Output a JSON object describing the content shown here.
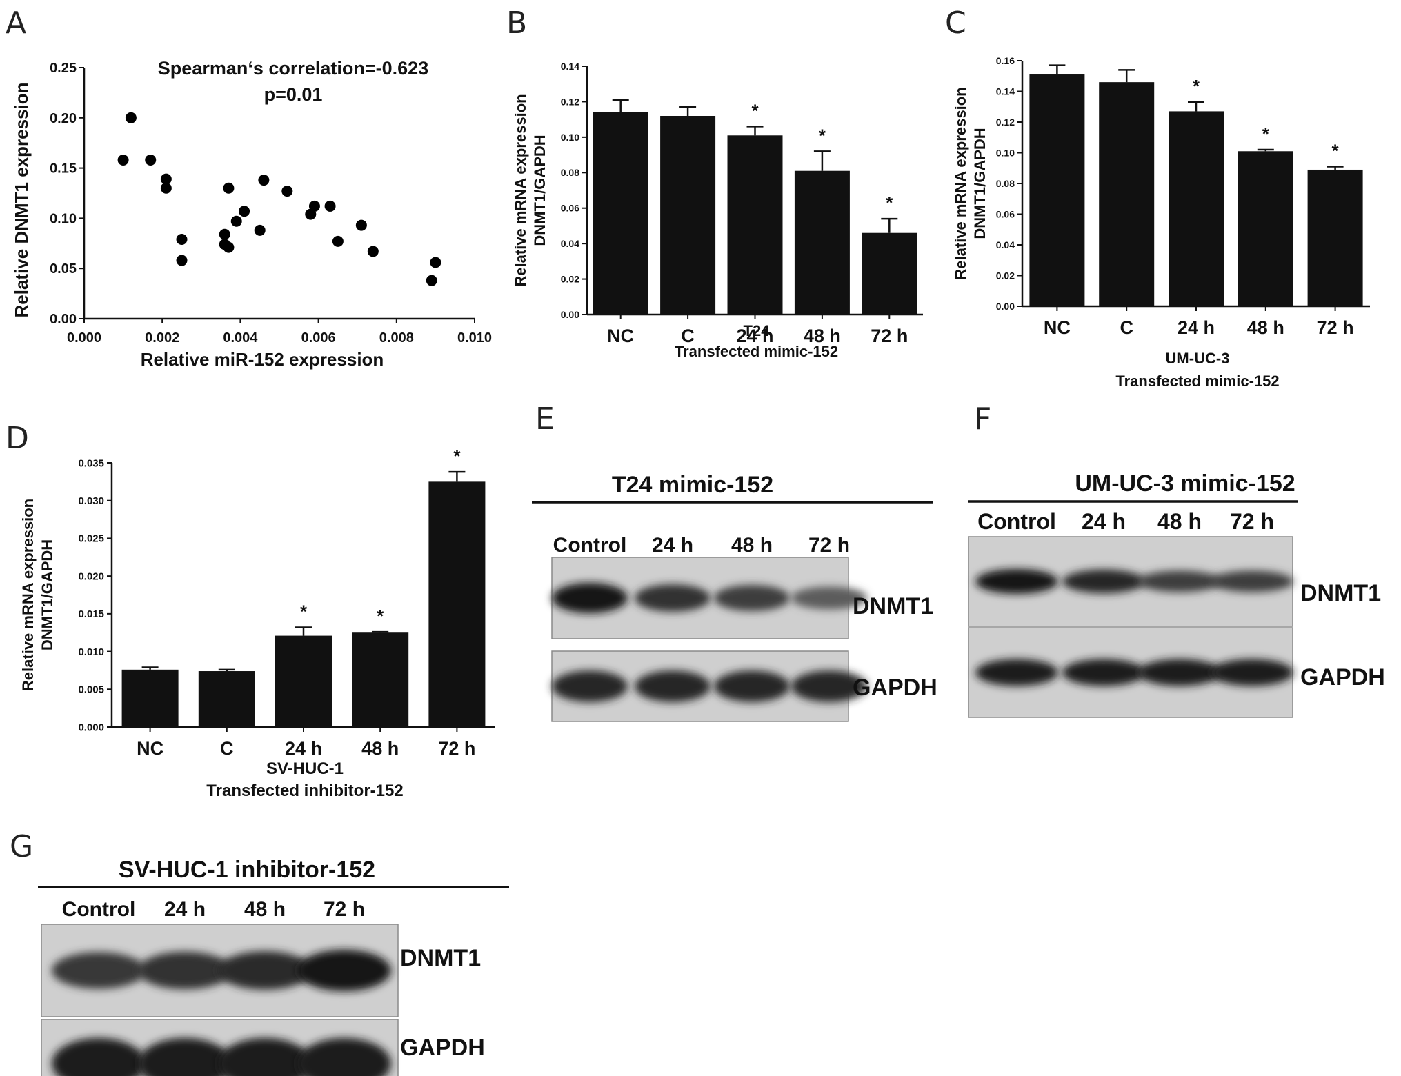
{
  "chart_data": [
    {
      "panel": "A",
      "type": "scatter",
      "title": "Spearman‘s correlation=-0.623",
      "subtitle": "p=0.01",
      "xlabel": "Relative miR-152 expression",
      "ylabel": "Relative DNMT1 expression",
      "xlim": [
        0.0,
        0.01
      ],
      "ylim": [
        0.0,
        0.25
      ],
      "xticks": [
        "0.000",
        "0.002",
        "0.004",
        "0.006",
        "0.008",
        "0.010"
      ],
      "yticks": [
        "0.00",
        "0.05",
        "0.10",
        "0.15",
        "0.20",
        "0.25"
      ],
      "points": [
        {
          "x": 0.001,
          "y": 0.158
        },
        {
          "x": 0.0012,
          "y": 0.2
        },
        {
          "x": 0.0017,
          "y": 0.158
        },
        {
          "x": 0.0021,
          "y": 0.139
        },
        {
          "x": 0.0021,
          "y": 0.13
        },
        {
          "x": 0.0025,
          "y": 0.079
        },
        {
          "x": 0.0025,
          "y": 0.058
        },
        {
          "x": 0.0036,
          "y": 0.084
        },
        {
          "x": 0.0036,
          "y": 0.074
        },
        {
          "x": 0.0037,
          "y": 0.13
        },
        {
          "x": 0.0037,
          "y": 0.071
        },
        {
          "x": 0.0039,
          "y": 0.097
        },
        {
          "x": 0.0041,
          "y": 0.107
        },
        {
          "x": 0.0045,
          "y": 0.088
        },
        {
          "x": 0.0046,
          "y": 0.138
        },
        {
          "x": 0.0052,
          "y": 0.127
        },
        {
          "x": 0.0058,
          "y": 0.104
        },
        {
          "x": 0.0059,
          "y": 0.112
        },
        {
          "x": 0.0063,
          "y": 0.112
        },
        {
          "x": 0.0065,
          "y": 0.077
        },
        {
          "x": 0.0071,
          "y": 0.093
        },
        {
          "x": 0.0074,
          "y": 0.067
        },
        {
          "x": 0.0089,
          "y": 0.038
        },
        {
          "x": 0.009,
          "y": 0.056
        }
      ]
    },
    {
      "panel": "B",
      "type": "bar",
      "ylabel_line1": "Relative mRNA expression",
      "ylabel_line2": "DNMT1/GAPDH",
      "xlabel_line1": "T24",
      "xlabel_line2": "Transfected mimic-152",
      "categories": [
        "NC",
        "C",
        "24 h",
        "48 h",
        "72 h"
      ],
      "values": [
        0.114,
        0.112,
        0.101,
        0.081,
        0.046
      ],
      "errors": [
        0.007,
        0.005,
        0.005,
        0.011,
        0.008
      ],
      "significance": [
        "",
        "",
        "*",
        "*",
        "*"
      ],
      "ylim": [
        0.0,
        0.14
      ],
      "yticks": [
        "0.00",
        "0.02",
        "0.04",
        "0.06",
        "0.08",
        "0.10",
        "0.12",
        "0.14"
      ]
    },
    {
      "panel": "C",
      "type": "bar",
      "ylabel_line1": "Relative mRNA expression",
      "ylabel_line2": "DNMT1/GAPDH",
      "xlabel_line1": "UM-UC-3",
      "xlabel_line2": "Transfected mimic-152",
      "categories": [
        "NC",
        "C",
        "24 h",
        "48 h",
        "72 h"
      ],
      "values": [
        0.151,
        0.146,
        0.127,
        0.101,
        0.089
      ],
      "errors": [
        0.006,
        0.008,
        0.006,
        0.001,
        0.002
      ],
      "significance": [
        "",
        "",
        "*",
        "*",
        "*"
      ],
      "ylim": [
        0.0,
        0.16
      ],
      "yticks": [
        "0.00",
        "0.02",
        "0.04",
        "0.06",
        "0.08",
        "0.10",
        "0.12",
        "0.14",
        "0.16"
      ]
    },
    {
      "panel": "D",
      "type": "bar",
      "ylabel_line1": "Relative mRNA expression",
      "ylabel_line2": "DNMT1/GAPDH",
      "xlabel_line1": "SV-HUC-1",
      "xlabel_line2": "Transfected inhibitor-152",
      "categories": [
        "NC",
        "C",
        "24 h",
        "48 h",
        "72 h"
      ],
      "values": [
        0.0076,
        0.0074,
        0.0121,
        0.0125,
        0.0325
      ],
      "errors": [
        0.0003,
        0.0002,
        0.0011,
        0.0001,
        0.0013
      ],
      "significance": [
        "",
        "",
        "*",
        "*",
        "*"
      ],
      "ylim": [
        0.0,
        0.035
      ],
      "yticks": [
        "0.000",
        "0.005",
        "0.010",
        "0.015",
        "0.020",
        "0.025",
        "0.030",
        "0.035"
      ]
    }
  ],
  "blots": [
    {
      "panel": "E",
      "title": "T24 mimic-152",
      "lanes": [
        "Control",
        "24 h",
        "48 h",
        "72 h"
      ],
      "rows": [
        {
          "label": "DNMT1",
          "intensity": [
            1.0,
            0.8,
            0.7,
            0.45
          ]
        },
        {
          "label": "GAPDH",
          "intensity": [
            0.9,
            0.9,
            0.9,
            0.9
          ]
        }
      ]
    },
    {
      "panel": "F",
      "title": "UM-UC-3 mimic-152",
      "lanes": [
        "Control",
        "24 h",
        "48 h",
        "72 h"
      ],
      "rows": [
        {
          "label": "DNMT1",
          "intensity": [
            1.0,
            0.9,
            0.7,
            0.7
          ]
        },
        {
          "label": "GAPDH",
          "intensity": [
            0.95,
            0.95,
            0.95,
            0.95
          ]
        }
      ]
    },
    {
      "panel": "G",
      "title": "SV-HUC-1 inhibitor-152",
      "lanes": [
        "Control",
        "24 h",
        "48 h",
        "72 h"
      ],
      "rows": [
        {
          "label": "DNMT1",
          "intensity": [
            0.75,
            0.8,
            0.85,
            1.0
          ]
        },
        {
          "label": "GAPDH",
          "intensity": [
            0.95,
            0.95,
            0.95,
            0.95
          ]
        }
      ]
    }
  ]
}
